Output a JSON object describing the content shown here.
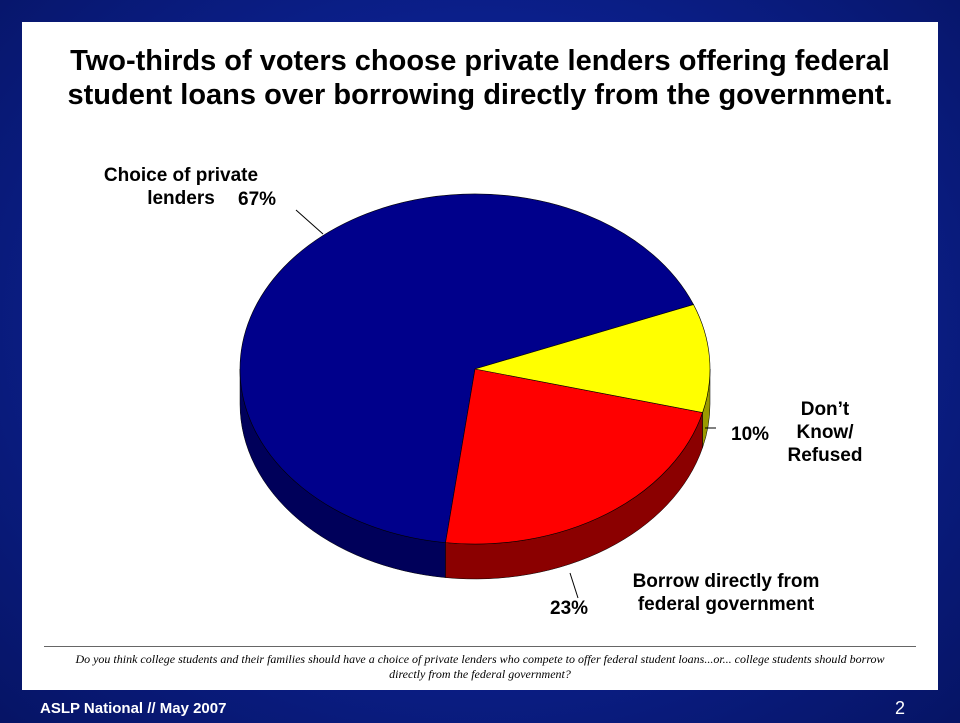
{
  "slide": {
    "title": "Two-thirds of voters choose private lenders offering federal student loans over borrowing directly from the government.",
    "question": "Do you think college students and their families should have a choice of private lenders who compete to offer federal student loans...or... college students should borrow directly from the federal government?",
    "footer_left": "ASLP National // May 2007",
    "page_number": "2"
  },
  "chart_data": {
    "type": "pie",
    "title": "Two-thirds of voters choose private lenders offering federal student loans over borrowing directly from the government.",
    "slices": [
      {
        "label": "Choice of private lenders",
        "pct_label": "67%",
        "value": 67,
        "color": "#00008b",
        "side_color": "#00005a"
      },
      {
        "label": "Borrow directly from federal government",
        "pct_label": "23%",
        "value": 23,
        "color": "#ff0000",
        "side_color": "#8b0000"
      },
      {
        "label": "Don’t Know/ Refused",
        "pct_label": "10%",
        "value": 10,
        "color": "#ffff00",
        "side_color": "#9a9a00"
      }
    ],
    "style": "3d"
  }
}
